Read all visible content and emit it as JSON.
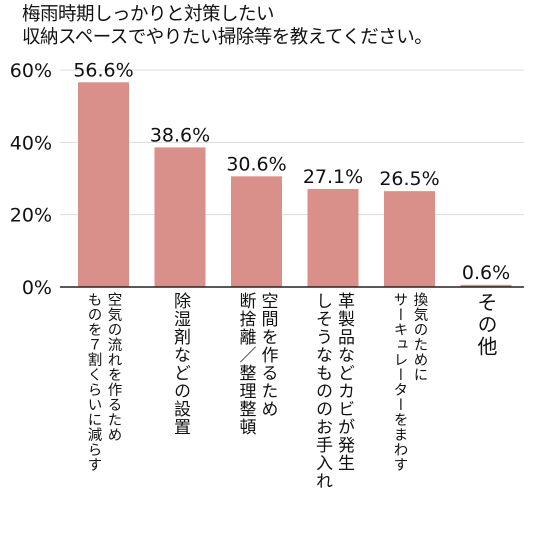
{
  "chart_data": {
    "type": "bar",
    "title_lines": [
      "梅雨時期しっかりと対策したい",
      "収納スペースでやりたい掃除等を教えてください。"
    ],
    "categories": [
      [
        "空気の流れを作るため",
        "ものを７割くらいに減らす"
      ],
      [
        "除湿剤などの設置"
      ],
      [
        "空間を作るため",
        "断捨離／整理整頓"
      ],
      [
        "革製品などカビが発生",
        "しそうなもののお手入れ"
      ],
      [
        "換気のために",
        "サーキュレーターをまわす"
      ],
      [
        "その他"
      ]
    ],
    "values": [
      56.6,
      38.6,
      30.6,
      27.1,
      26.5,
      0.6
    ],
    "value_labels": [
      "56.6%",
      "38.6%",
      "30.6%",
      "27.1%",
      "26.5%",
      "0.6%"
    ],
    "ylim": [
      0,
      60
    ],
    "yticks": [
      0,
      20,
      40,
      60
    ],
    "ytick_labels": [
      "0%",
      "20%",
      "40%",
      "60%"
    ],
    "grid": true,
    "colors": {
      "bar": "#d98f8a",
      "grid": "#dcdcdc",
      "axis": "#222222"
    }
  }
}
